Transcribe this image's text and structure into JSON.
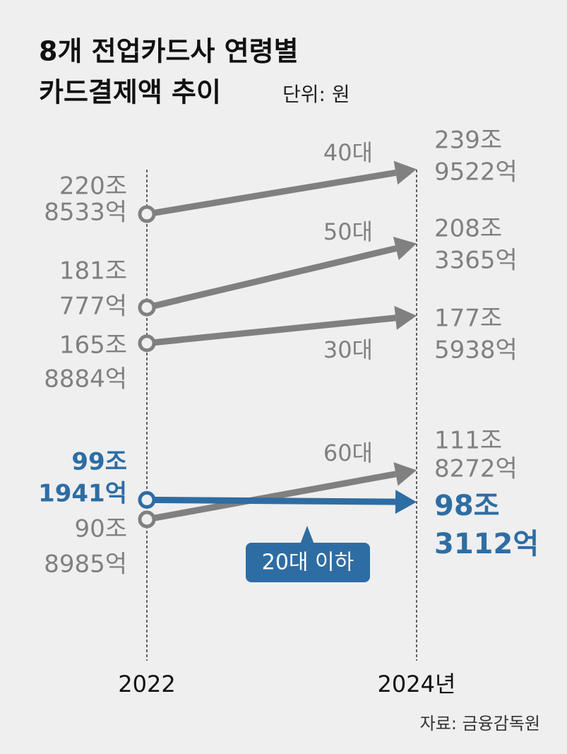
{
  "chart_data": {
    "type": "slope",
    "title": [
      "8개 전업카드사 연령별",
      "카드결제액 추이"
    ],
    "unit": "단위: 원",
    "source": "자료: 금융감독원",
    "categories": [
      "2022",
      "2024년"
    ],
    "series": [
      {
        "name": "40대",
        "color": "#808080",
        "values": [
          2208533,
          2399522
        ],
        "value_labels": [
          [
            "220조",
            "8533억"
          ],
          [
            "239조",
            "9522억"
          ]
        ]
      },
      {
        "name": "50대",
        "color": "#808080",
        "values": [
          1810777,
          2083365
        ],
        "value_labels": [
          [
            "181조",
            "777억"
          ],
          [
            "208조",
            "3365억"
          ]
        ]
      },
      {
        "name": "30대",
        "color": "#808080",
        "values": [
          1658884,
          1775938
        ],
        "value_labels": [
          [
            "165조",
            "8884억"
          ],
          [
            "177조",
            "5938억"
          ]
        ]
      },
      {
        "name": "60대",
        "color": "#808080",
        "values": [
          908985,
          1118272
        ],
        "value_labels": [
          [
            "90조",
            "8985억"
          ],
          [
            "111조",
            "8272억"
          ]
        ]
      },
      {
        "name": "20대 이하",
        "color": "#2e6da4",
        "emphasis": true,
        "values": [
          991941,
          983112
        ],
        "value_labels": [
          [
            "99조",
            "1941억"
          ],
          [
            "98조",
            "3112억"
          ]
        ]
      }
    ]
  }
}
